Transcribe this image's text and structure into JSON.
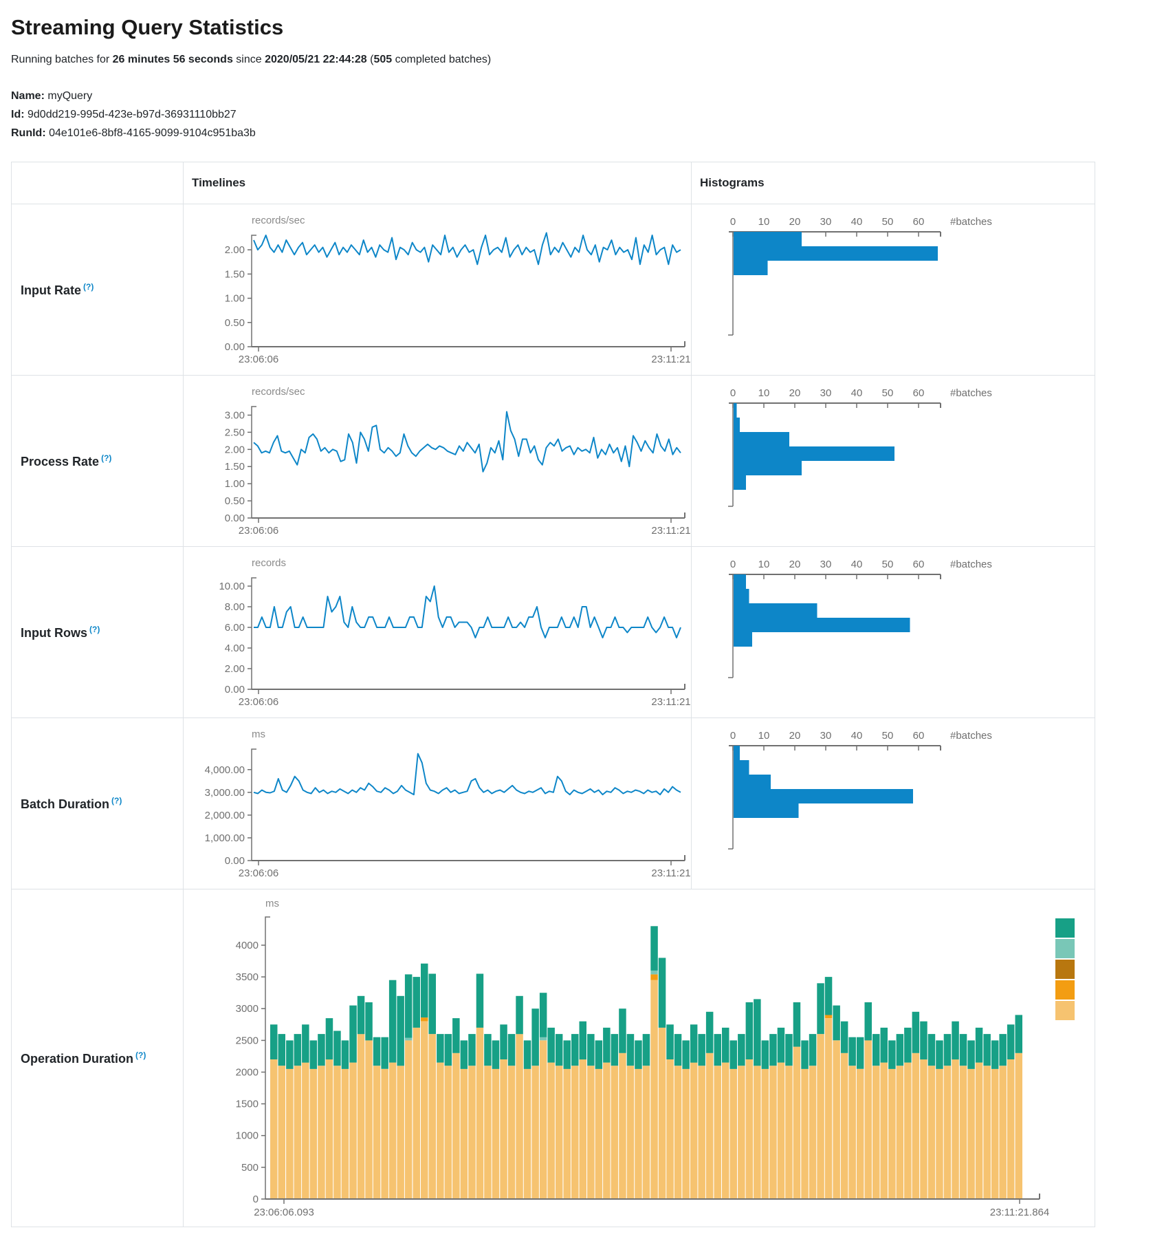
{
  "page": {
    "title": "Streaming Query Statistics",
    "help": "(?)",
    "subtitle": {
      "prefix": "Running batches for ",
      "duration": "26 minutes 56 seconds",
      "since_word": " since ",
      "start_time": "2020/05/21 22:44:28",
      "paren_open": " (",
      "batches": "505",
      "suffix": " completed batches)"
    },
    "meta": [
      {
        "label": "Name:",
        "value": "myQuery"
      },
      {
        "label": "Id:",
        "value": "9d0dd219-995d-423e-b97d-36931110bb27"
      },
      {
        "label": "RunId:",
        "value": "04e101e6-8bf8-4165-9099-9104c951ba3b"
      }
    ]
  },
  "table": {
    "headers": {
      "timelines": "Timelines",
      "histograms": "Histograms"
    }
  },
  "colors": {
    "line_blue": "#0d86c8",
    "axis_gray": "#707070",
    "tick_text": "#6f6f6f",
    "teal": "#17a086",
    "light_teal": "#79c7b7",
    "brown": "#b8770f",
    "orange": "#f39d12",
    "light_orange": "#f6c370"
  },
  "chart_data": [
    {
      "id": "input-rate",
      "row_label": "Input Rate",
      "type": "line",
      "title": "records/sec",
      "x_start_label": "23:06:06",
      "x_end_label": "23:11:21",
      "ymax": 2.3,
      "yticks": [
        {
          "v": 2,
          "label": "2.00"
        },
        {
          "v": 1.5,
          "label": "1.50"
        },
        {
          "v": 1,
          "label": "1.00"
        },
        {
          "v": 0.5,
          "label": "0.50"
        },
        {
          "v": 0,
          "label": "0.00"
        }
      ],
      "values": [
        2.2,
        2.0,
        2.1,
        2.3,
        2.05,
        1.95,
        2.1,
        1.95,
        2.2,
        2.05,
        1.9,
        2.05,
        2.15,
        1.9,
        2.0,
        2.1,
        1.95,
        2.05,
        1.85,
        2.0,
        2.15,
        1.9,
        2.05,
        1.95,
        2.1,
        2.0,
        1.9,
        2.2,
        1.95,
        2.05,
        1.85,
        2.1,
        2.0,
        1.95,
        2.25,
        1.8,
        2.05,
        2.0,
        1.9,
        2.15,
        2.0,
        1.95,
        2.05,
        1.75,
        2.1,
        2.0,
        1.9,
        2.3,
        1.95,
        2.05,
        1.85,
        2.0,
        2.1,
        1.95,
        2.0,
        1.7,
        2.05,
        2.3,
        1.9,
        2.0,
        2.05,
        1.95,
        2.25,
        1.85,
        2.0,
        2.1,
        1.9,
        2.05,
        1.95,
        2.0,
        1.7,
        2.1,
        2.35,
        1.9,
        2.05,
        1.95,
        2.15,
        2.0,
        1.85,
        2.05,
        1.95,
        2.3,
        2.0,
        1.9,
        2.1,
        1.75,
        2.05,
        2.0,
        2.2,
        1.9,
        2.05,
        1.95,
        2.0,
        1.8,
        2.25,
        1.7,
        2.1,
        1.95,
        2.3,
        1.9,
        2.0,
        2.05,
        1.7,
        2.1,
        1.95,
        2.0
      ],
      "histogram": {
        "bins": [
          22,
          66,
          11
        ],
        "xticks": [
          0,
          10,
          20,
          30,
          40,
          50,
          60
        ],
        "xlabel": "#batches"
      }
    },
    {
      "id": "process-rate",
      "row_label": "Process Rate",
      "type": "line",
      "title": "records/sec",
      "x_start_label": "23:06:06",
      "x_end_label": "23:11:21",
      "ymax": 3.25,
      "yticks": [
        {
          "v": 3,
          "label": "3.00"
        },
        {
          "v": 2.5,
          "label": "2.50"
        },
        {
          "v": 2,
          "label": "2.00"
        },
        {
          "v": 1.5,
          "label": "1.50"
        },
        {
          "v": 1,
          "label": "1.00"
        },
        {
          "v": 0.5,
          "label": "0.50"
        },
        {
          "v": 0,
          "label": "0.00"
        }
      ],
      "values": [
        2.2,
        2.1,
        1.9,
        1.95,
        1.9,
        2.2,
        2.4,
        1.95,
        1.9,
        1.95,
        1.75,
        1.55,
        2.0,
        1.9,
        2.35,
        2.45,
        2.3,
        1.95,
        2.05,
        1.9,
        2.0,
        1.95,
        1.65,
        1.7,
        2.45,
        2.2,
        1.6,
        2.5,
        2.3,
        1.95,
        2.65,
        2.7,
        2.0,
        1.9,
        2.05,
        1.95,
        1.8,
        1.9,
        2.45,
        2.1,
        1.9,
        1.8,
        1.95,
        2.05,
        2.15,
        2.05,
        2.0,
        2.1,
        2.05,
        1.95,
        1.9,
        1.85,
        2.1,
        1.95,
        2.2,
        2.05,
        1.9,
        2.15,
        1.35,
        1.6,
        2.05,
        1.9,
        2.25,
        1.7,
        3.1,
        2.55,
        2.3,
        1.8,
        2.3,
        2.3,
        1.9,
        2.1,
        1.7,
        1.55,
        2.05,
        2.2,
        2.1,
        2.3,
        1.95,
        2.05,
        2.1,
        1.85,
        2.05,
        1.95,
        2.0,
        1.9,
        2.35,
        1.75,
        2.0,
        1.85,
        2.15,
        1.9,
        2.05,
        1.65,
        2.1,
        1.5,
        2.4,
        2.2,
        1.95,
        2.25,
        2.05,
        1.9,
        2.45,
        2.1,
        1.95,
        2.3,
        1.85,
        2.05,
        1.9
      ],
      "histogram": {
        "bins": [
          1,
          2,
          18,
          52,
          22,
          4
        ],
        "xticks": [
          0,
          10,
          20,
          30,
          40,
          50,
          60
        ],
        "xlabel": "#batches"
      }
    },
    {
      "id": "input-rows",
      "row_label": "Input Rows",
      "type": "line",
      "title": "records",
      "x_start_label": "23:06:06",
      "x_end_label": "23:11:21",
      "ymax": 10.8,
      "yticks": [
        {
          "v": 10,
          "label": "10.00"
        },
        {
          "v": 8,
          "label": "8.00"
        },
        {
          "v": 6,
          "label": "6.00"
        },
        {
          "v": 4,
          "label": "4.00"
        },
        {
          "v": 2,
          "label": "2.00"
        },
        {
          "v": 0,
          "label": "0.00"
        }
      ],
      "values": [
        6,
        6,
        7,
        6,
        6,
        8,
        6,
        6,
        7.5,
        8,
        6,
        6,
        7,
        6,
        6,
        6,
        6,
        6,
        9,
        7.5,
        8,
        9,
        6.5,
        6,
        8,
        6.5,
        6,
        6,
        7,
        7,
        6,
        6,
        6,
        7,
        6,
        6,
        6,
        6,
        7,
        7,
        6,
        6,
        9,
        8.5,
        10,
        7,
        6,
        7,
        7,
        6,
        6.5,
        6.5,
        6.5,
        6,
        5,
        6,
        6,
        7,
        6,
        6,
        6,
        6,
        7,
        6,
        6,
        6.5,
        6,
        7,
        7,
        8,
        6,
        5,
        6,
        6,
        6,
        7,
        6,
        6,
        7,
        6,
        8,
        8,
        6,
        7,
        6,
        5,
        6,
        6,
        7,
        6,
        6,
        5.5,
        6,
        6,
        6,
        6,
        7,
        6,
        5.5,
        6,
        7,
        6,
        6,
        5,
        6
      ],
      "histogram": {
        "bins": [
          4,
          5,
          27,
          57,
          6
        ],
        "xticks": [
          0,
          10,
          20,
          30,
          40,
          50,
          60
        ],
        "xlabel": "#batches"
      }
    },
    {
      "id": "batch-duration",
      "row_label": "Batch Duration",
      "type": "line",
      "title": "ms",
      "x_start_label": "23:06:06",
      "x_end_label": "23:11:21",
      "ymax": 4900,
      "yticks": [
        {
          "v": 4000,
          "label": "4,000.00"
        },
        {
          "v": 3000,
          "label": "3,000.00"
        },
        {
          "v": 2000,
          "label": "2,000.00"
        },
        {
          "v": 1000,
          "label": "1,000.00"
        },
        {
          "v": 0,
          "label": "0.00"
        }
      ],
      "values": [
        3000,
        2950,
        3100,
        3000,
        2980,
        3050,
        3600,
        3100,
        3000,
        3300,
        3700,
        3500,
        3100,
        3000,
        2950,
        3200,
        3000,
        3100,
        2950,
        3050,
        3000,
        3150,
        3050,
        2950,
        3100,
        3000,
        3200,
        3100,
        3400,
        3250,
        3050,
        3000,
        3200,
        3100,
        2950,
        3050,
        3300,
        3100,
        3000,
        2900,
        4700,
        4300,
        3400,
        3100,
        3050,
        2950,
        3100,
        3200,
        3000,
        3100,
        2950,
        3000,
        3050,
        3500,
        3600,
        3200,
        3000,
        3100,
        2950,
        3050,
        3100,
        3000,
        3150,
        3300,
        3100,
        3000,
        2950,
        3050,
        3000,
        3100,
        3200,
        2950,
        3050,
        3000,
        3700,
        3500,
        3050,
        2900,
        3100,
        3000,
        2950,
        3050,
        3150,
        3000,
        3100,
        2900,
        3050,
        3000,
        3200,
        3100,
        2950,
        3050,
        3000,
        3100,
        3050,
        2950,
        3100,
        3000,
        3050,
        2900,
        3150,
        3000,
        3250,
        3100,
        3000
      ],
      "histogram": {
        "bins": [
          2,
          5,
          12,
          58,
          21
        ],
        "xticks": [
          0,
          10,
          20,
          30,
          40,
          50,
          60
        ],
        "xlabel": "#batches"
      }
    },
    {
      "id": "operation-duration",
      "row_label": "Operation Duration",
      "type": "stacked-bar",
      "title": "ms",
      "x_start_label": "23:06:06.093",
      "x_end_label": "23:11:21.864",
      "ymax": 4444,
      "yticks": [
        {
          "v": 4000,
          "label": "4000"
        },
        {
          "v": 3500,
          "label": "3500"
        },
        {
          "v": 3000,
          "label": "3000"
        },
        {
          "v": 2500,
          "label": "2500"
        },
        {
          "v": 2000,
          "label": "2000"
        },
        {
          "v": 1500,
          "label": "1500"
        },
        {
          "v": 1000,
          "label": "1000"
        },
        {
          "v": 500,
          "label": "500"
        },
        {
          "v": 0,
          "label": "0"
        }
      ],
      "series": [
        {
          "name": "light-orange",
          "color": "#f6c370",
          "values": [
            2200,
            2100,
            2050,
            2100,
            2150,
            2050,
            2100,
            2200,
            2100,
            2050,
            2150,
            2600,
            2500,
            2100,
            2050,
            2150,
            2100,
            2500,
            2700,
            2800,
            2600,
            2150,
            2100,
            2300,
            2050,
            2100,
            2700,
            2100,
            2050,
            2200,
            2100,
            2600,
            2050,
            2100,
            2500,
            2150,
            2100,
            2050,
            2100,
            2200,
            2100,
            2050,
            2150,
            2100,
            2300,
            2100,
            2050,
            2100,
            3450,
            2700,
            2200,
            2100,
            2050,
            2150,
            2100,
            2300,
            2100,
            2150,
            2050,
            2100,
            2200,
            2100,
            2050,
            2100,
            2150,
            2100,
            2400,
            2050,
            2100,
            2600,
            2850,
            2500,
            2300,
            2100,
            2050,
            2500,
            2100,
            2150,
            2050,
            2100,
            2150,
            2300,
            2200,
            2100,
            2050,
            2100,
            2200,
            2100,
            2050,
            2150,
            2100,
            2050,
            2100,
            2200,
            2300
          ]
        },
        {
          "name": "orange",
          "color": "#f39d12",
          "sparse": {
            "19": 60,
            "48": 90,
            "70": 50
          }
        },
        {
          "name": "light-teal",
          "color": "#79c7b7",
          "sparse": {
            "17": 40,
            "34": 50,
            "48": 60
          }
        },
        {
          "name": "teal",
          "color": "#17a086",
          "values": [
            550,
            500,
            450,
            500,
            600,
            450,
            500,
            650,
            550,
            450,
            900,
            600,
            600,
            450,
            500,
            1300,
            1100,
            1000,
            800,
            850,
            950,
            450,
            500,
            550,
            450,
            500,
            850,
            500,
            450,
            550,
            500,
            600,
            450,
            900,
            700,
            550,
            500,
            450,
            500,
            600,
            500,
            450,
            550,
            500,
            700,
            500,
            450,
            500,
            700,
            1100,
            550,
            500,
            450,
            600,
            500,
            650,
            500,
            550,
            450,
            500,
            900,
            1050,
            450,
            500,
            550,
            500,
            700,
            450,
            500,
            800,
            600,
            550,
            500,
            450,
            500,
            600,
            500,
            550,
            450,
            500,
            550,
            650,
            600,
            500,
            450,
            500,
            600,
            500,
            450,
            550,
            500,
            450,
            500,
            550,
            600
          ]
        }
      ],
      "legend_colors": [
        "#17a086",
        "#79c7b7",
        "#b8770f",
        "#f39d12",
        "#f6c370"
      ]
    }
  ]
}
